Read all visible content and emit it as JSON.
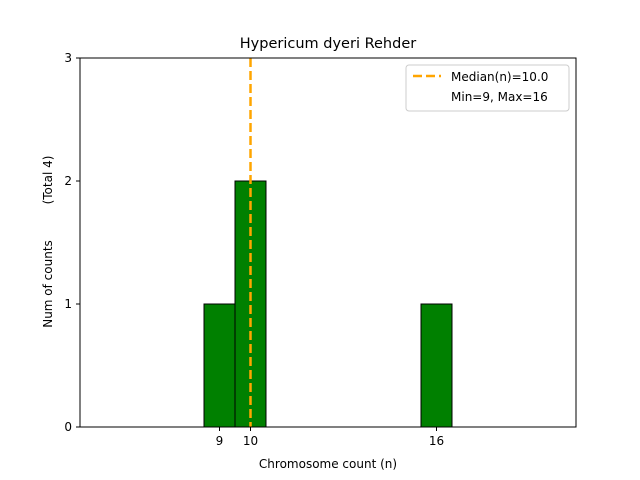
{
  "chart_data": {
    "type": "bar",
    "title": "Hypericum dyeri Rehder",
    "xlabel": "Chromosome count (n)",
    "ylabel": "Num of counts",
    "ylabel_note": "(Total 4)",
    "xlim": [
      4.5,
      20.5
    ],
    "ylim": [
      0,
      3
    ],
    "x_ticks": [
      9,
      10,
      16
    ],
    "y_ticks": [
      0,
      1,
      2,
      3
    ],
    "bar_width": 1,
    "bars": [
      {
        "x": 9,
        "count": 1
      },
      {
        "x": 10,
        "count": 2
      },
      {
        "x": 16,
        "count": 1
      }
    ],
    "baseline": {
      "x_start": 5,
      "x_end": 19.5
    },
    "median": 10.0,
    "legend": {
      "placement": "top-right",
      "entries": [
        "Median(n)=10.0",
        "Min=9, Max=16"
      ]
    },
    "colors": {
      "bar": "#008000",
      "bar_edge": "#000000",
      "median": "#ffa500"
    }
  }
}
